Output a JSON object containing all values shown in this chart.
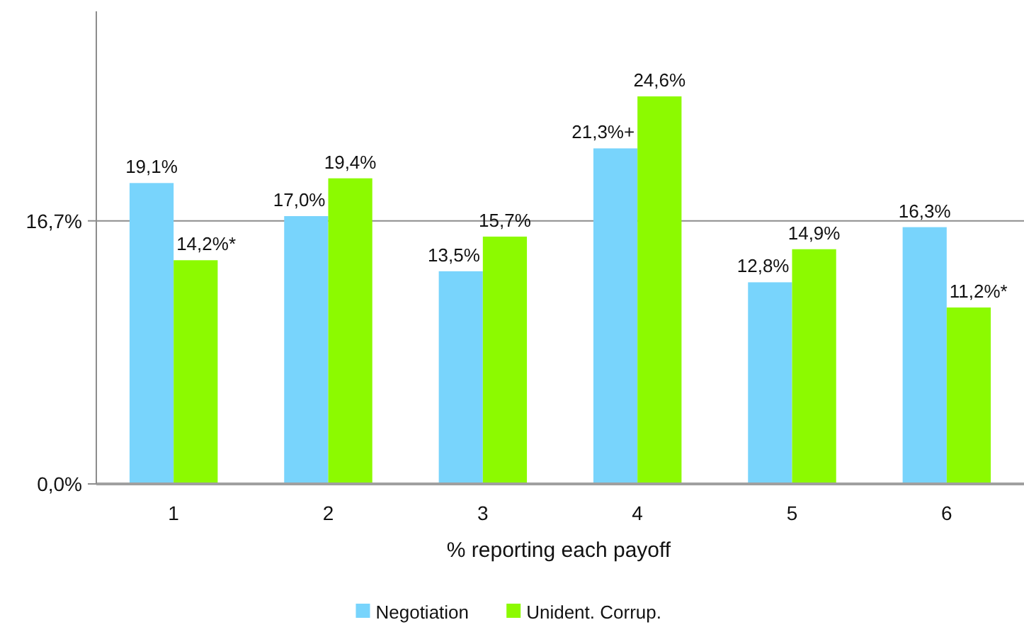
{
  "chart_data": {
    "type": "bar",
    "xlabel": "% reporting each payoff",
    "categories": [
      "1",
      "2",
      "3",
      "4",
      "5",
      "6"
    ],
    "series": [
      {
        "name": "Negotiation",
        "color": "#78d4fc",
        "values": [
          19.1,
          17.0,
          13.5,
          21.3,
          12.8,
          16.3
        ],
        "value_labels": [
          "19,1%",
          "17,0%",
          "13,5%",
          "21,3%+",
          "12,8%",
          "16,3%"
        ]
      },
      {
        "name": "Unident. Corrup.",
        "color": "#8cfa00",
        "values": [
          14.2,
          19.4,
          15.7,
          24.6,
          14.9,
          11.2
        ],
        "value_labels": [
          "14,2%*",
          "19,4%",
          "15,7%",
          "24,6%",
          "14,9%",
          "11,2%*"
        ]
      }
    ],
    "ylim": [
      0,
      30
    ],
    "yticks": [
      {
        "value": 0,
        "label": "0,0%"
      },
      {
        "value": 16.7,
        "label": "16,7%"
      }
    ],
    "grid": "y",
    "legend": "bottom"
  }
}
